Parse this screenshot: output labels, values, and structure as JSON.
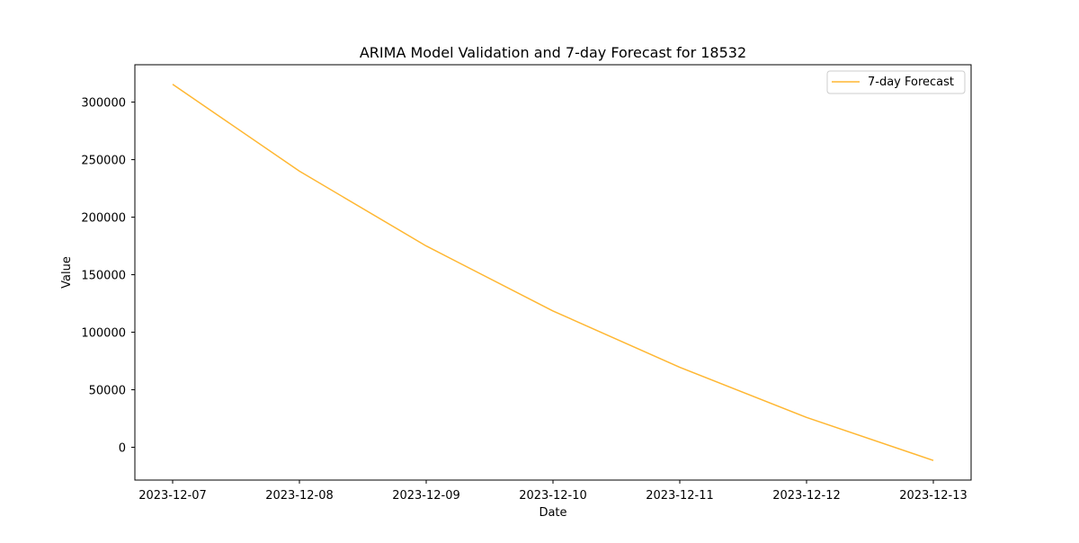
{
  "chart_data": {
    "type": "line",
    "title": "ARIMA Model Validation and 7-day Forecast for 18532",
    "xlabel": "Date",
    "ylabel": "Value",
    "x": [
      "2023-12-07",
      "2023-12-08",
      "2023-12-09",
      "2023-12-10",
      "2023-12-11",
      "2023-12-12",
      "2023-12-13"
    ],
    "series": [
      {
        "name": "7-day Forecast",
        "color": "#ffb732",
        "values": [
          315500,
          240000,
          175000,
          118500,
          69500,
          26000,
          -11500
        ]
      }
    ],
    "ylim": [
      -28500,
      332500
    ],
    "yticks": [
      0,
      50000,
      100000,
      150000,
      200000,
      250000,
      300000
    ],
    "ytick_labels": [
      "0",
      "50000",
      "100000",
      "150000",
      "200000",
      "250000",
      "300000"
    ],
    "xtick_labels": [
      "2023-12-07",
      "2023-12-08",
      "2023-12-09",
      "2023-12-10",
      "2023-12-11",
      "2023-12-12",
      "2023-12-13"
    ],
    "grid": false,
    "legend_position": "upper right"
  }
}
